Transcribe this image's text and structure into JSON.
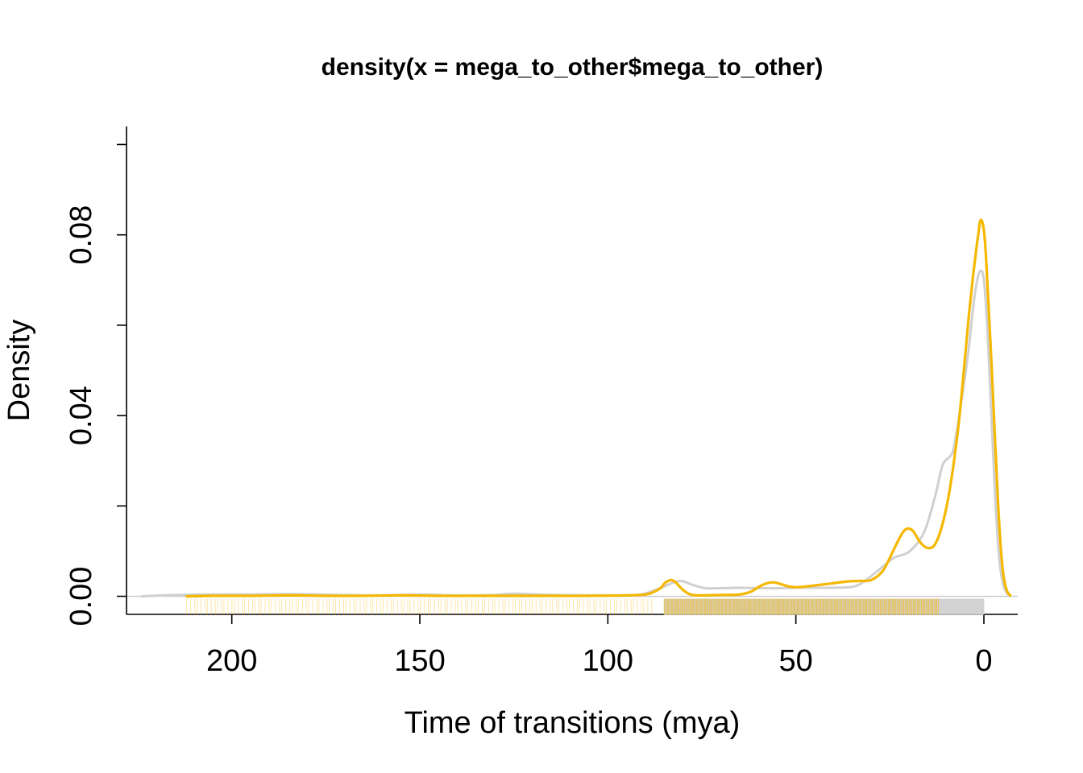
{
  "chart_data": {
    "type": "line",
    "title": "density(x = mega_to_other$mega_to_other)",
    "xlabel": "Time of transitions (mya)",
    "ylabel": "Density",
    "xlim": [
      228,
      -9
    ],
    "ylim": [
      -0.004,
      0.104
    ],
    "x_ticks": [
      200,
      150,
      100,
      50,
      0
    ],
    "x_tick_labels": [
      "200",
      "150",
      "100",
      "50",
      "0"
    ],
    "y_ticks": [
      0.0,
      0.02,
      0.04,
      0.06,
      0.08,
      0.1
    ],
    "y_tick_labels": [
      "0.00",
      "",
      "0.04",
      "",
      "0.08",
      ""
    ],
    "zero_line": true,
    "legend": "none",
    "series": [
      {
        "color": "#d0d0d0",
        "x": [
          224,
          215,
          205,
          195,
          185,
          170,
          160,
          150,
          140,
          130,
          125,
          115,
          100,
          92,
          88,
          85,
          82,
          80,
          77,
          74,
          70,
          65,
          60,
          55,
          50,
          45,
          40,
          35,
          32,
          28,
          24,
          20,
          16,
          13,
          11,
          9,
          8,
          6,
          4,
          3,
          2,
          1,
          0,
          -1,
          -2,
          -3,
          -4,
          -5,
          -6,
          -7
        ],
        "y": [
          0.0,
          0.0003,
          0.0004,
          0.0004,
          0.0005,
          0.0003,
          0.0002,
          0.0004,
          0.0002,
          0.0003,
          0.0006,
          0.0003,
          0.0002,
          0.0003,
          0.0012,
          0.0022,
          0.0032,
          0.0033,
          0.0024,
          0.0018,
          0.0018,
          0.0019,
          0.0018,
          0.0018,
          0.0019,
          0.0019,
          0.0019,
          0.0021,
          0.0032,
          0.0058,
          0.0085,
          0.0098,
          0.014,
          0.022,
          0.029,
          0.031,
          0.033,
          0.043,
          0.055,
          0.063,
          0.069,
          0.072,
          0.07,
          0.058,
          0.04,
          0.022,
          0.009,
          0.003,
          0.0008,
          0.0001
        ]
      },
      {
        "color": "#f5b800",
        "x": [
          212,
          205,
          195,
          185,
          175,
          165,
          155,
          145,
          135,
          125,
          115,
          105,
          95,
          90,
          88,
          86,
          85,
          84,
          83,
          82,
          80,
          78,
          76,
          74,
          70,
          65,
          62,
          60,
          58,
          56,
          54,
          52,
          50,
          47,
          44,
          40,
          36,
          33,
          30,
          27,
          25,
          23,
          21,
          19,
          17,
          15,
          13,
          11,
          9,
          7,
          6,
          5,
          4,
          3,
          2,
          1.5,
          1,
          0.5,
          0,
          -0.5,
          -1,
          -2,
          -3,
          -4,
          -5,
          -6,
          -7
        ],
        "y": [
          0.0,
          0.0001,
          0.0001,
          0.0002,
          0.0001,
          0.0001,
          0.0002,
          0.0001,
          0.0001,
          0.0001,
          0.0001,
          0.0001,
          0.0002,
          0.0004,
          0.0009,
          0.0018,
          0.0028,
          0.0034,
          0.0036,
          0.0031,
          0.0014,
          0.0004,
          0.0002,
          0.0002,
          0.0003,
          0.0004,
          0.001,
          0.002,
          0.0028,
          0.0031,
          0.0027,
          0.0022,
          0.002,
          0.0022,
          0.0025,
          0.0029,
          0.0033,
          0.0034,
          0.0036,
          0.0055,
          0.0085,
          0.012,
          0.0147,
          0.0146,
          0.012,
          0.0107,
          0.0115,
          0.016,
          0.024,
          0.036,
          0.044,
          0.053,
          0.062,
          0.07,
          0.077,
          0.08,
          0.083,
          0.083,
          0.081,
          0.076,
          0.068,
          0.052,
          0.034,
          0.017,
          0.006,
          0.0015,
          0.0002
        ]
      }
    ],
    "rug_gray_ranges": [
      [
        85,
        0
      ]
    ],
    "rug_orange_ranges": [
      [
        85,
        12
      ],
      [
        212,
        88
      ]
    ]
  }
}
